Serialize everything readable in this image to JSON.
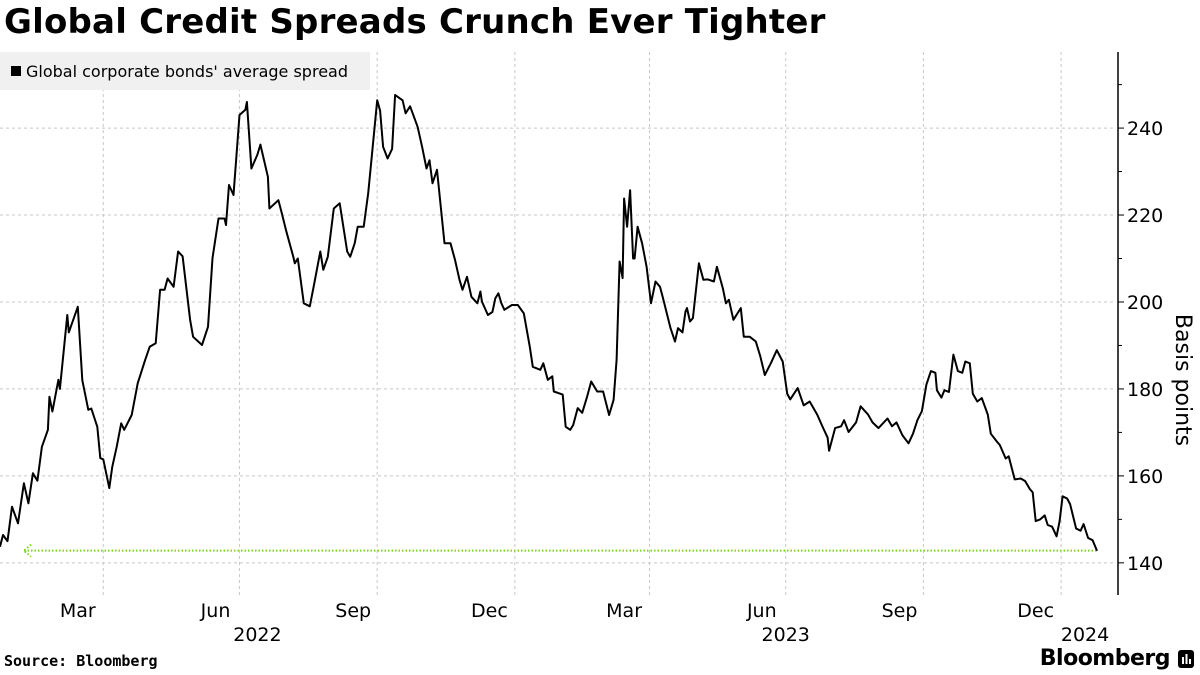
{
  "title": "Global Credit Spreads Crunch Ever Tighter",
  "source": "Source: Bloomberg",
  "logo_text": "Bloomberg",
  "colors": {
    "line": "#000000",
    "reference_line": "#7ed321",
    "grid": "#c8c8c8",
    "legend_bg": "#f0f0f0"
  },
  "chart_data": {
    "type": "line",
    "title": "Global Credit Spreads Crunch Ever Tighter",
    "ylabel": "Basis points",
    "xlabel": "",
    "ylim": [
      132.6,
      257.5
    ],
    "xlim": [
      "2022-01-22",
      "2024-02-06"
    ],
    "grid": true,
    "legend_position": "top-left",
    "y_axis_side": "right",
    "yticks": [
      140,
      160,
      180,
      200,
      220,
      240
    ],
    "x_month_ticks": [
      {
        "label": "Mar",
        "at": "2022-03-15"
      },
      {
        "label": "Jun",
        "at": "2022-06-15"
      },
      {
        "label": "Sep",
        "at": "2022-09-15"
      },
      {
        "label": "Dec",
        "at": "2022-12-15"
      },
      {
        "label": "Mar",
        "at": "2023-03-15"
      },
      {
        "label": "Jun",
        "at": "2023-06-15"
      },
      {
        "label": "Sep",
        "at": "2023-09-15"
      },
      {
        "label": "Dec",
        "at": "2023-12-15"
      }
    ],
    "x_year_ticks": [
      {
        "label": "2022",
        "at": "2022-07-13"
      },
      {
        "label": "2023",
        "at": "2023-07-01"
      },
      {
        "label": "2024",
        "at": "2024-01-17"
      }
    ],
    "reference_line": {
      "value": 142.8,
      "style": "dotted",
      "arrow": "left"
    },
    "series": [
      {
        "name": "Global corporate bonds' average spread",
        "points": [
          [
            "2022-01-22",
            143.7
          ],
          [
            "2022-01-24",
            146.4
          ],
          [
            "2022-01-27",
            145
          ],
          [
            "2022-01-30",
            152.9
          ],
          [
            "2022-02-03",
            149.1
          ],
          [
            "2022-02-07",
            158.3
          ],
          [
            "2022-02-10",
            153.7
          ],
          [
            "2022-02-13",
            160.6
          ],
          [
            "2022-02-16",
            158.9
          ],
          [
            "2022-02-19",
            166.7
          ],
          [
            "2022-02-23",
            170.6
          ],
          [
            "2022-02-24",
            178.2
          ],
          [
            "2022-02-26",
            174.8
          ],
          [
            "2022-03-02",
            182.1
          ],
          [
            "2022-03-03",
            180
          ],
          [
            "2022-03-08",
            197
          ],
          [
            "2022-03-09",
            193
          ],
          [
            "2022-03-15",
            198.9
          ],
          [
            "2022-03-18",
            182
          ],
          [
            "2022-03-22",
            175.2
          ],
          [
            "2022-03-24",
            175.5
          ],
          [
            "2022-03-28",
            171.3
          ],
          [
            "2022-03-30",
            164.1
          ],
          [
            "2022-04-01",
            163.8
          ],
          [
            "2022-04-05",
            157.2
          ],
          [
            "2022-04-07",
            162
          ],
          [
            "2022-04-10",
            166.7
          ],
          [
            "2022-04-13",
            172.1
          ],
          [
            "2022-04-15",
            170.6
          ],
          [
            "2022-04-20",
            174
          ],
          [
            "2022-04-24",
            181.3
          ],
          [
            "2022-04-29",
            186.7
          ],
          [
            "2022-05-02",
            189.7
          ],
          [
            "2022-05-06",
            190.5
          ],
          [
            "2022-05-09",
            202.8
          ],
          [
            "2022-05-12",
            202.8
          ],
          [
            "2022-05-14",
            205.4
          ],
          [
            "2022-05-18",
            203.5
          ],
          [
            "2022-05-21",
            211.6
          ],
          [
            "2022-05-24",
            210.5
          ],
          [
            "2022-05-29",
            195.9
          ],
          [
            "2022-05-31",
            192
          ],
          [
            "2022-06-06",
            190.1
          ],
          [
            "2022-06-10",
            194.3
          ],
          [
            "2022-06-13",
            210.1
          ],
          [
            "2022-06-17",
            219.2
          ],
          [
            "2022-06-21",
            219.2
          ],
          [
            "2022-06-22",
            217.7
          ],
          [
            "2022-06-24",
            226.9
          ],
          [
            "2022-06-27",
            224.6
          ],
          [
            "2022-07-01",
            243
          ],
          [
            "2022-07-05",
            244.2
          ],
          [
            "2022-07-06",
            246
          ],
          [
            "2022-07-09",
            230.7
          ],
          [
            "2022-07-13",
            233.9
          ],
          [
            "2022-07-15",
            236.2
          ],
          [
            "2022-07-20",
            228.8
          ],
          [
            "2022-07-21",
            221.5
          ],
          [
            "2022-07-27",
            223.4
          ],
          [
            "2022-07-29",
            220.8
          ],
          [
            "2022-08-01",
            216.6
          ],
          [
            "2022-08-06",
            210.4
          ],
          [
            "2022-08-07",
            208.9
          ],
          [
            "2022-08-09",
            210
          ],
          [
            "2022-08-13",
            199.7
          ],
          [
            "2022-08-17",
            199
          ],
          [
            "2022-08-20",
            204.3
          ],
          [
            "2022-08-24",
            211.6
          ],
          [
            "2022-08-26",
            207.4
          ],
          [
            "2022-08-29",
            210.4
          ],
          [
            "2022-09-02",
            221.5
          ],
          [
            "2022-09-06",
            222.7
          ],
          [
            "2022-09-11",
            211.6
          ],
          [
            "2022-09-13",
            210.4
          ],
          [
            "2022-09-16",
            213.5
          ],
          [
            "2022-09-18",
            217.3
          ],
          [
            "2022-09-22",
            217.3
          ],
          [
            "2022-09-25",
            225
          ],
          [
            "2022-10-01",
            246.4
          ],
          [
            "2022-10-03",
            244
          ],
          [
            "2022-10-05",
            235.7
          ],
          [
            "2022-10-08",
            233
          ],
          [
            "2022-10-11",
            235.2
          ],
          [
            "2022-10-13",
            247.6
          ],
          [
            "2022-10-18",
            246.4
          ],
          [
            "2022-10-20",
            243.4
          ],
          [
            "2022-10-23",
            245
          ],
          [
            "2022-10-28",
            240.3
          ],
          [
            "2022-10-31",
            235.7
          ],
          [
            "2022-11-03",
            230.7
          ],
          [
            "2022-11-05",
            232.6
          ],
          [
            "2022-11-07",
            227.3
          ],
          [
            "2022-11-10",
            230.4
          ],
          [
            "2022-11-15",
            213.5
          ],
          [
            "2022-11-19",
            213.5
          ],
          [
            "2022-11-22",
            209.7
          ],
          [
            "2022-11-25",
            205.1
          ],
          [
            "2022-11-27",
            202.8
          ],
          [
            "2022-11-30",
            205.8
          ],
          [
            "2022-12-03",
            201.2
          ],
          [
            "2022-12-07",
            199.7
          ],
          [
            "2022-12-09",
            202.4
          ],
          [
            "2022-12-10",
            200.1
          ],
          [
            "2022-12-14",
            197
          ],
          [
            "2022-12-17",
            197.7
          ],
          [
            "2022-12-19",
            200.9
          ],
          [
            "2022-12-21",
            202
          ],
          [
            "2022-12-23",
            199.7
          ],
          [
            "2022-12-25",
            198.2
          ],
          [
            "2022-12-30",
            199.3
          ],
          [
            "2023-01-03",
            199.3
          ],
          [
            "2023-01-07",
            197.4
          ],
          [
            "2023-01-11",
            189.7
          ],
          [
            "2023-01-13",
            185.1
          ],
          [
            "2023-01-18",
            184.4
          ],
          [
            "2023-01-20",
            185.9
          ],
          [
            "2023-01-23",
            182.1
          ],
          [
            "2023-01-26",
            182.9
          ],
          [
            "2023-01-27",
            179.4
          ],
          [
            "2023-02-02",
            178.7
          ],
          [
            "2023-02-04",
            171.3
          ],
          [
            "2023-02-07",
            170.6
          ],
          [
            "2023-02-09",
            171.7
          ],
          [
            "2023-02-12",
            175.6
          ],
          [
            "2023-02-15",
            174.5
          ],
          [
            "2023-02-18",
            177.9
          ],
          [
            "2023-02-21",
            181.7
          ],
          [
            "2023-02-25",
            179.4
          ],
          [
            "2023-03-01",
            179.4
          ],
          [
            "2023-03-05",
            174
          ],
          [
            "2023-03-08",
            177.5
          ],
          [
            "2023-03-10",
            186.7
          ],
          [
            "2023-03-12",
            209.3
          ],
          [
            "2023-03-14",
            205.5
          ],
          [
            "2023-03-15",
            223.8
          ],
          [
            "2023-03-17",
            217.3
          ],
          [
            "2023-03-19",
            225.7
          ],
          [
            "2023-03-21",
            210
          ],
          [
            "2023-03-22",
            210
          ],
          [
            "2023-03-24",
            217.3
          ],
          [
            "2023-03-27",
            213.5
          ],
          [
            "2023-03-30",
            208.1
          ],
          [
            "2023-04-02",
            199.7
          ],
          [
            "2023-04-05",
            204.7
          ],
          [
            "2023-04-08",
            203.5
          ],
          [
            "2023-04-10",
            200.9
          ],
          [
            "2023-04-15",
            194
          ],
          [
            "2023-04-18",
            190.9
          ],
          [
            "2023-04-20",
            194
          ],
          [
            "2023-04-23",
            193
          ],
          [
            "2023-04-25",
            197.8
          ],
          [
            "2023-04-26",
            198.6
          ],
          [
            "2023-04-28",
            195.5
          ],
          [
            "2023-04-30",
            196.3
          ],
          [
            "2023-05-04",
            208.9
          ],
          [
            "2023-05-07",
            205.1
          ],
          [
            "2023-05-10",
            205.2
          ],
          [
            "2023-05-14",
            204.7
          ],
          [
            "2023-05-16",
            208.1
          ],
          [
            "2023-05-20",
            203.1
          ],
          [
            "2023-05-22",
            199.7
          ],
          [
            "2023-05-24",
            200.5
          ],
          [
            "2023-05-27",
            195.9
          ],
          [
            "2023-06-01",
            198.6
          ],
          [
            "2023-06-03",
            192
          ],
          [
            "2023-06-07",
            192
          ],
          [
            "2023-06-11",
            190.9
          ],
          [
            "2023-06-14",
            187.5
          ],
          [
            "2023-06-17",
            183.2
          ],
          [
            "2023-06-21",
            185.9
          ],
          [
            "2023-06-25",
            188.9
          ],
          [
            "2023-06-29",
            186.3
          ],
          [
            "2023-07-02",
            178.9
          ],
          [
            "2023-07-04",
            177.6
          ],
          [
            "2023-07-09",
            180.2
          ],
          [
            "2023-07-13",
            176.2
          ],
          [
            "2023-07-17",
            177.1
          ],
          [
            "2023-07-22",
            174.1
          ],
          [
            "2023-07-26",
            171
          ],
          [
            "2023-07-29",
            168.8
          ],
          [
            "2023-07-30",
            165.8
          ],
          [
            "2023-08-03",
            171
          ],
          [
            "2023-08-07",
            171.4
          ],
          [
            "2023-08-09",
            172.8
          ],
          [
            "2023-08-12",
            170.1
          ],
          [
            "2023-08-17",
            172.3
          ],
          [
            "2023-08-20",
            176
          ],
          [
            "2023-08-25",
            174.1
          ],
          [
            "2023-08-28",
            172.3
          ],
          [
            "2023-09-01",
            171
          ],
          [
            "2023-09-07",
            173.2
          ],
          [
            "2023-09-10",
            171.4
          ],
          [
            "2023-09-13",
            172.3
          ],
          [
            "2023-09-17",
            169.3
          ],
          [
            "2023-09-21",
            167.5
          ],
          [
            "2023-09-24",
            169.7
          ],
          [
            "2023-09-27",
            172.8
          ],
          [
            "2023-09-30",
            174.9
          ],
          [
            "2023-10-03",
            181
          ],
          [
            "2023-10-06",
            184.1
          ],
          [
            "2023-10-09",
            183.7
          ],
          [
            "2023-10-10",
            179.7
          ],
          [
            "2023-10-13",
            178
          ],
          [
            "2023-10-15",
            179.7
          ],
          [
            "2023-10-18",
            179.3
          ],
          [
            "2023-10-21",
            187.9
          ],
          [
            "2023-10-24",
            184.1
          ],
          [
            "2023-10-27",
            183.7
          ],
          [
            "2023-10-29",
            186.3
          ],
          [
            "2023-11-01",
            185.9
          ],
          [
            "2023-11-03",
            178.9
          ],
          [
            "2023-11-06",
            177.1
          ],
          [
            "2023-11-09",
            177.9
          ],
          [
            "2023-11-13",
            174.1
          ],
          [
            "2023-11-15",
            169.7
          ],
          [
            "2023-11-19",
            167.9
          ],
          [
            "2023-11-21",
            167.1
          ],
          [
            "2023-11-25",
            164
          ],
          [
            "2023-11-27",
            164.5
          ],
          [
            "2023-12-01",
            159.2
          ],
          [
            "2023-12-05",
            159.4
          ],
          [
            "2023-12-08",
            158.8
          ],
          [
            "2023-12-11",
            157
          ],
          [
            "2023-12-13",
            156.2
          ],
          [
            "2023-12-15",
            149.6
          ],
          [
            "2023-12-18",
            150
          ],
          [
            "2023-12-21",
            150.9
          ],
          [
            "2023-12-23",
            148.7
          ],
          [
            "2023-12-26",
            148.3
          ],
          [
            "2023-12-29",
            146.1
          ],
          [
            "2023-12-31",
            149.6
          ],
          [
            "2024-01-02",
            155.3
          ],
          [
            "2024-01-05",
            154.8
          ],
          [
            "2024-01-07",
            153.5
          ],
          [
            "2024-01-11",
            147.9
          ],
          [
            "2024-01-14",
            147.4
          ],
          [
            "2024-01-16",
            148.9
          ],
          [
            "2024-01-19",
            145.7
          ],
          [
            "2024-01-22",
            145.2
          ],
          [
            "2024-01-25",
            142.8
          ]
        ]
      }
    ]
  }
}
